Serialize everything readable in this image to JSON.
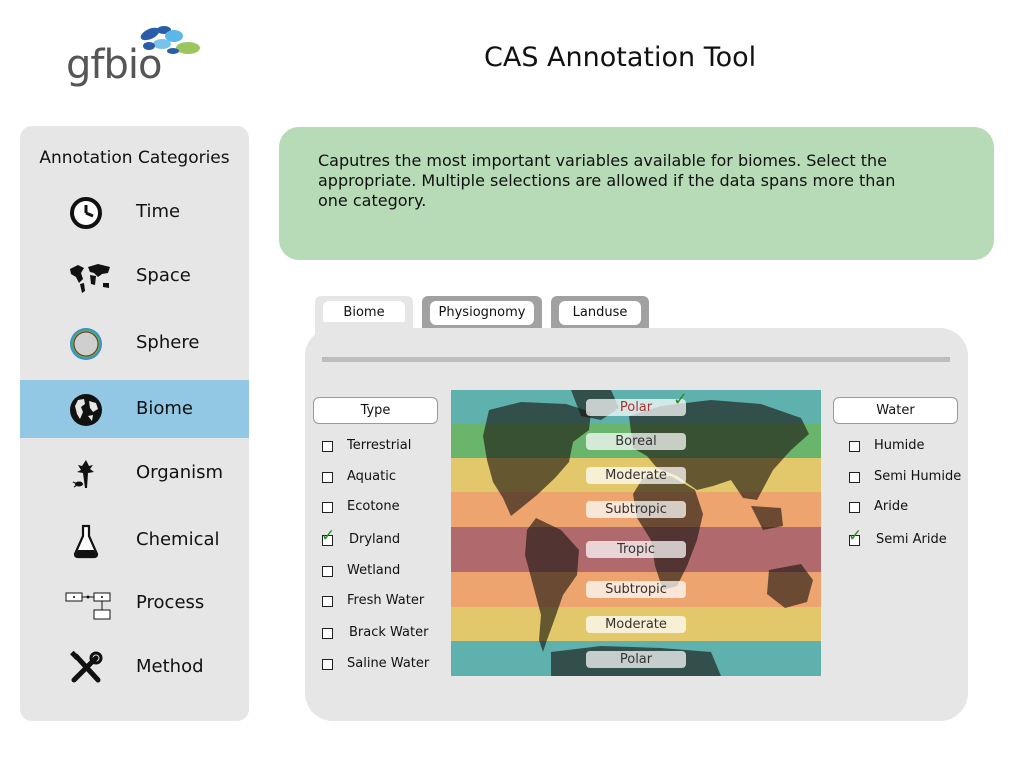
{
  "app": {
    "logo_text": "gfbio",
    "title": "CAS Annotation Tool"
  },
  "sidebar": {
    "title": "Annotation Categories",
    "items": [
      {
        "label": "Time",
        "icon": "clock-icon",
        "active": false
      },
      {
        "label": "Space",
        "icon": "world-map-icon",
        "active": false
      },
      {
        "label": "Sphere",
        "icon": "sphere-icon",
        "active": false
      },
      {
        "label": "Biome",
        "icon": "globe-icon",
        "active": true
      },
      {
        "label": "Organism",
        "icon": "organism-icon",
        "active": false
      },
      {
        "label": "Chemical",
        "icon": "flask-icon",
        "active": false
      },
      {
        "label": "Process",
        "icon": "process-diagram-icon",
        "active": false
      },
      {
        "label": "Method",
        "icon": "tools-icon",
        "active": false
      }
    ]
  },
  "description": "Caputres the most important variables available for biomes. Select the appropriate. Multiple selections are allowed if the data spans more than one category.",
  "tabs": [
    {
      "label": "Biome",
      "active": true
    },
    {
      "label": "Physiognomy",
      "active": false
    },
    {
      "label": "Landuse",
      "active": false
    }
  ],
  "type_column": {
    "header": "Type",
    "options": [
      {
        "label": "Terrestrial",
        "checked": false
      },
      {
        "label": "Aquatic",
        "checked": false
      },
      {
        "label": "Ecotone",
        "checked": false
      },
      {
        "label": "Dryland",
        "checked": true
      },
      {
        "label": "Wetland",
        "checked": false
      },
      {
        "label": "Fresh Water",
        "checked": false
      },
      {
        "label": "Brack Water",
        "checked": false
      },
      {
        "label": "Saline Water",
        "checked": false
      }
    ]
  },
  "climate_zones": [
    {
      "label": "Polar",
      "color": "#5fb1ad",
      "selected": true
    },
    {
      "label": "Boreal",
      "color": "#6ab56c",
      "selected": false
    },
    {
      "label": "Moderate",
      "color": "#e2c86a",
      "selected": false
    },
    {
      "label": "Subtropic",
      "color": "#eea46f",
      "selected": false
    },
    {
      "label": "Tropic",
      "color": "#b06a6d",
      "selected": false
    },
    {
      "label": "Subtropic",
      "color": "#eea46f",
      "selected": false
    },
    {
      "label": "Moderate",
      "color": "#e2c86a",
      "selected": false
    },
    {
      "label": "Polar",
      "color": "#5fb1ad",
      "selected": false
    }
  ],
  "water_column": {
    "header": "Water",
    "options": [
      {
        "label": "Humide",
        "checked": false
      },
      {
        "label": "Semi Humide",
        "checked": false
      },
      {
        "label": "Aride",
        "checked": false
      },
      {
        "label": "Semi Aride",
        "checked": true
      }
    ]
  },
  "colors": {
    "active_category": "#93c8e4",
    "description_bg": "#b7dbb6",
    "panel_bg": "#e6e6e6",
    "check": "#2e8b2e"
  }
}
